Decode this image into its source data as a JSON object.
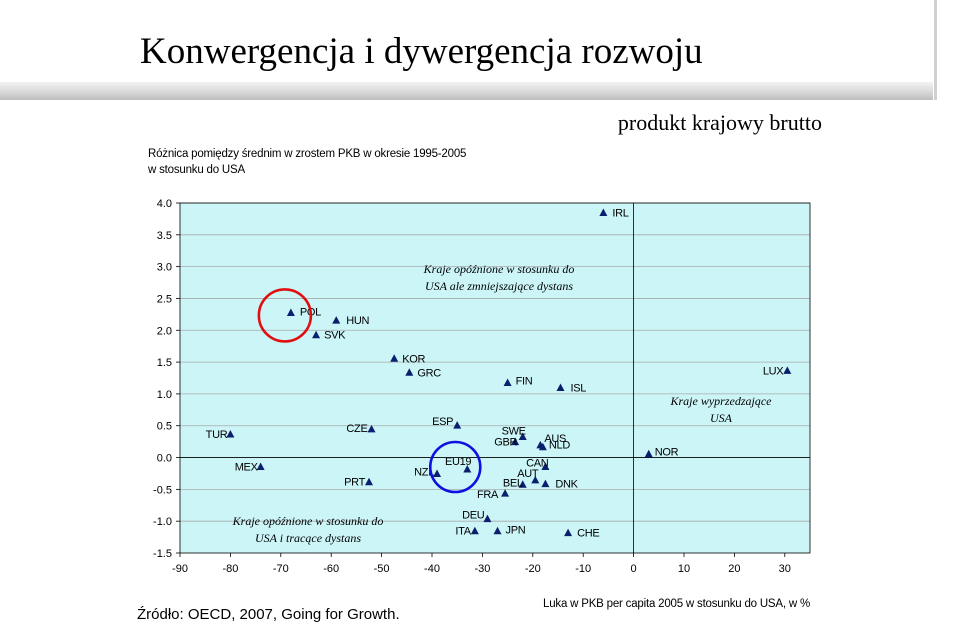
{
  "slide": {
    "title": "Konwergencja i dywergencja rozwoju",
    "subtitle": "produkt krajowy brutto",
    "source": "Źródło: OECD, 2007, Going for Growth."
  },
  "chart_data": {
    "type": "scatter",
    "ylabel_lines": [
      "Różnica pomiędzy średnim w zrostem PKB w  okresie 1995-2005",
      "w  stosunku do USA"
    ],
    "xlabel": "Luka w  PKB per capita 2005  w  stosunku do USA, w  %",
    "xlim": [
      -90,
      35
    ],
    "ylim": [
      -1.5,
      4.0
    ],
    "xticks": [
      -90,
      -80,
      -70,
      -60,
      -50,
      -40,
      -30,
      -20,
      -10,
      0,
      10,
      20,
      30
    ],
    "yticks": [
      "-1.5",
      "-1.0",
      "-0.5",
      "0.0",
      "0.5",
      "1.0",
      "1.5",
      "2.0",
      "2.5",
      "3.0",
      "3.5",
      "4.0"
    ],
    "grid": "horizontal",
    "background_color": "#ccf5f7",
    "marker_color": "#0a1f6e",
    "points": [
      {
        "label": "IRL",
        "x": -6,
        "y": 3.85
      },
      {
        "label": "POL",
        "x": -68,
        "y": 2.28
      },
      {
        "label": "HUN",
        "x": -59,
        "y": 2.16
      },
      {
        "label": "SVK",
        "x": -63,
        "y": 1.93
      },
      {
        "label": "KOR",
        "x": -47.5,
        "y": 1.56
      },
      {
        "label": "GRC",
        "x": -44.5,
        "y": 1.34
      },
      {
        "label": "FIN",
        "x": -25,
        "y": 1.18
      },
      {
        "label": "ISL",
        "x": -14.5,
        "y": 1.1
      },
      {
        "label": "LUX",
        "x": 30.5,
        "y": 1.37
      },
      {
        "label": "TUR",
        "x": -80,
        "y": 0.37
      },
      {
        "label": "CZE",
        "x": -52,
        "y": 0.45
      },
      {
        "label": "ESP",
        "x": -35,
        "y": 0.51
      },
      {
        "label": "SWE",
        "x": -22,
        "y": 0.33
      },
      {
        "label": "AUS",
        "x": -18.5,
        "y": 0.2
      },
      {
        "label": "GBR",
        "x": -23.5,
        "y": 0.25
      },
      {
        "label": "NLD",
        "x": -18,
        "y": 0.17
      },
      {
        "label": "NOR",
        "x": 3,
        "y": 0.06
      },
      {
        "label": "MEX",
        "x": -74,
        "y": -0.14
      },
      {
        "label": "EU19",
        "x": -33,
        "y": -0.18
      },
      {
        "label": "CAN",
        "x": -17.5,
        "y": -0.14
      },
      {
        "label": "NZL",
        "x": -39,
        "y": -0.25
      },
      {
        "label": "AUT",
        "x": -19.5,
        "y": -0.35
      },
      {
        "label": "BEL",
        "x": -22,
        "y": -0.42
      },
      {
        "label": "DNK",
        "x": -17.5,
        "y": -0.41
      },
      {
        "label": "PRT",
        "x": -52.5,
        "y": -0.38
      },
      {
        "label": "FRA",
        "x": -25.5,
        "y": -0.56
      },
      {
        "label": "DEU",
        "x": -29,
        "y": -0.96
      },
      {
        "label": "ITA",
        "x": -31.5,
        "y": -1.15
      },
      {
        "label": "JPN",
        "x": -27,
        "y": -1.15
      },
      {
        "label": "CHE",
        "x": -13,
        "y": -1.18
      }
    ],
    "annotations": [
      {
        "lines": [
          "Kraje opóźnione w stosunku do",
          "USA ale zmniejszające dystans"
        ]
      },
      {
        "lines": [
          "Kraje wyprzedzające",
          "USA"
        ]
      },
      {
        "lines": [
          "Kraje opóźnione w stosunku do",
          "USA i tracące dystans"
        ]
      }
    ],
    "highlights": [
      {
        "target": "POL",
        "color": "#e01010"
      },
      {
        "target": "EU19",
        "color": "#1010e0"
      }
    ]
  }
}
